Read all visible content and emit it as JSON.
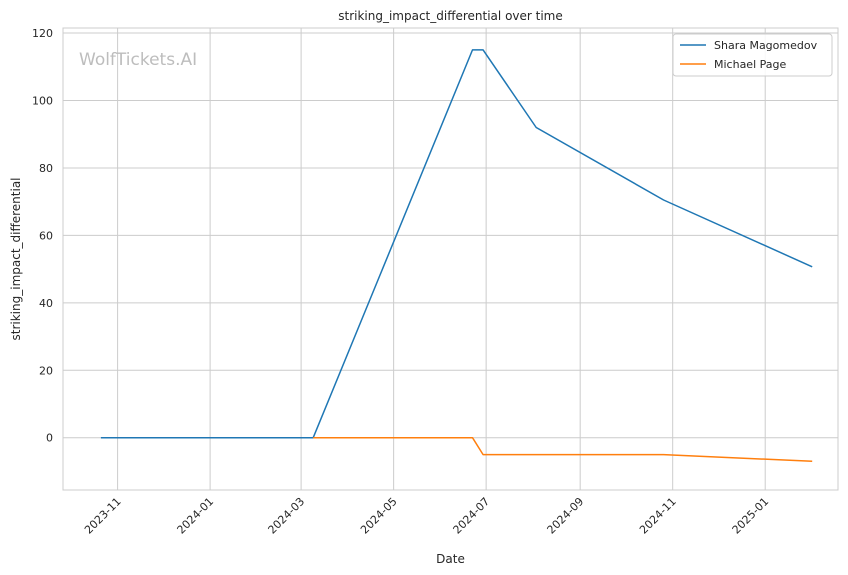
{
  "chart_data": {
    "type": "line",
    "title": "striking_impact_differential over time",
    "xlabel": "Date",
    "ylabel": "striking_impact_differential",
    "watermark": "WolfTickets.AI",
    "x_ticks": [
      "2023-11",
      "2024-01",
      "2024-03",
      "2024-05",
      "2024-07",
      "2024-09",
      "2024-11",
      "2025-01"
    ],
    "y_ticks": [
      0,
      20,
      40,
      60,
      80,
      100,
      120
    ],
    "xlim": [
      "2023-09-26",
      "2025-02-18"
    ],
    "ylim": [
      -15.5,
      121.5
    ],
    "grid": true,
    "legend_position": "top-right",
    "series": [
      {
        "name": "Shara Magomedov",
        "color": "#1f77b4",
        "points": [
          [
            "2023-10-21",
            0
          ],
          [
            "2024-03-09",
            0
          ],
          [
            "2024-06-22",
            115
          ],
          [
            "2024-06-29",
            115
          ],
          [
            "2024-08-03",
            92
          ],
          [
            "2024-10-26",
            70.5
          ],
          [
            "2025-02-01",
            50.7
          ]
        ]
      },
      {
        "name": "Michael Page",
        "color": "#ff7f0e",
        "points": [
          [
            "2024-03-09",
            0
          ],
          [
            "2024-06-22",
            0
          ],
          [
            "2024-06-29",
            -5
          ],
          [
            "2024-10-26",
            -5
          ],
          [
            "2025-02-01",
            -7
          ]
        ]
      }
    ]
  }
}
